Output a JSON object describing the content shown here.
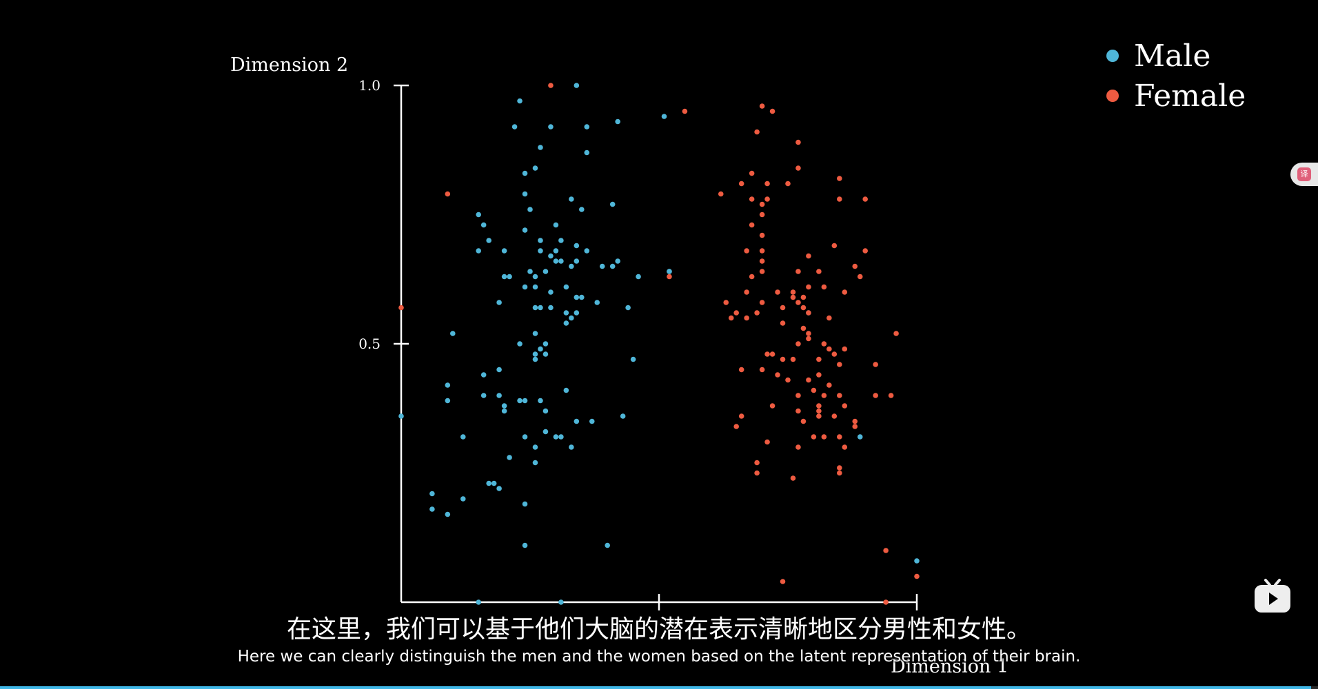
{
  "colors": {
    "male": "#4fb6d8",
    "female": "#ee5b41",
    "axis": "#ffffff",
    "background": "#000000"
  },
  "legend": {
    "items": [
      {
        "label": "Male",
        "color": "#4fb6d8"
      },
      {
        "label": "Female",
        "color": "#ee5b41"
      }
    ]
  },
  "subtitles": {
    "zh": "在这里，我们可以基于他们大脑的潜在表示清晰地区分男性和女性。",
    "en": "Here we can clearly distinguish the men and the women based on the latent representation of their brain."
  },
  "player": {
    "progress_fraction": 0.995
  },
  "icons": {
    "translate": "translate-icon",
    "logo": "bilibili-tv-icon"
  },
  "chart_data": {
    "type": "scatter",
    "xlabel": "Dimension 1",
    "ylabel": "Dimension 2",
    "xlim": [
      0,
      1.0
    ],
    "ylim": [
      0,
      1.0
    ],
    "yticks": [
      {
        "value": 0.5,
        "label": "0.5"
      },
      {
        "value": 1.0,
        "label": "1.0"
      }
    ],
    "xticks": [
      {
        "value": 0.5,
        "label": ""
      },
      {
        "value": 1.0,
        "label": ""
      }
    ],
    "grid": false,
    "legend_position": "top-right",
    "series": [
      {
        "name": "Male",
        "color": "#4fb6d8",
        "points": [
          [
            0.34,
            1.0
          ],
          [
            0.23,
            0.97
          ],
          [
            0.22,
            0.92
          ],
          [
            0.29,
            0.92
          ],
          [
            0.36,
            0.92
          ],
          [
            0.42,
            0.93
          ],
          [
            0.51,
            0.94
          ],
          [
            0.27,
            0.88
          ],
          [
            0.36,
            0.87
          ],
          [
            0.24,
            0.83
          ],
          [
            0.26,
            0.84
          ],
          [
            0.24,
            0.79
          ],
          [
            0.33,
            0.78
          ],
          [
            0.25,
            0.76
          ],
          [
            0.15,
            0.75
          ],
          [
            0.16,
            0.73
          ],
          [
            0.3,
            0.73
          ],
          [
            0.41,
            0.77
          ],
          [
            0.35,
            0.76
          ],
          [
            0.24,
            0.72
          ],
          [
            0.17,
            0.7
          ],
          [
            0.27,
            0.7
          ],
          [
            0.31,
            0.7
          ],
          [
            0.3,
            0.68
          ],
          [
            0.34,
            0.69
          ],
          [
            0.36,
            0.68
          ],
          [
            0.15,
            0.68
          ],
          [
            0.2,
            0.68
          ],
          [
            0.27,
            0.68
          ],
          [
            0.29,
            0.67
          ],
          [
            0.3,
            0.66
          ],
          [
            0.31,
            0.66
          ],
          [
            0.34,
            0.66
          ],
          [
            0.33,
            0.65
          ],
          [
            0.39,
            0.65
          ],
          [
            0.41,
            0.65
          ],
          [
            0.42,
            0.66
          ],
          [
            0.25,
            0.64
          ],
          [
            0.28,
            0.64
          ],
          [
            0.26,
            0.63
          ],
          [
            0.2,
            0.63
          ],
          [
            0.21,
            0.63
          ],
          [
            0.46,
            0.63
          ],
          [
            0.52,
            0.64
          ],
          [
            0.24,
            0.61
          ],
          [
            0.26,
            0.61
          ],
          [
            0.32,
            0.61
          ],
          [
            0.29,
            0.6
          ],
          [
            0.34,
            0.59
          ],
          [
            0.35,
            0.59
          ],
          [
            0.38,
            0.58
          ],
          [
            0.19,
            0.58
          ],
          [
            0.29,
            0.57
          ],
          [
            0.26,
            0.57
          ],
          [
            0.27,
            0.57
          ],
          [
            0.32,
            0.56
          ],
          [
            0.34,
            0.56
          ],
          [
            0.44,
            0.57
          ],
          [
            0.33,
            0.55
          ],
          [
            0.32,
            0.54
          ],
          [
            0.1,
            0.52
          ],
          [
            0.26,
            0.52
          ],
          [
            0.23,
            0.5
          ],
          [
            0.28,
            0.5
          ],
          [
            0.27,
            0.49
          ],
          [
            0.26,
            0.48
          ],
          [
            0.28,
            0.48
          ],
          [
            0.26,
            0.47
          ],
          [
            0.45,
            0.47
          ],
          [
            0.19,
            0.45
          ],
          [
            0.16,
            0.44
          ],
          [
            0.09,
            0.42
          ],
          [
            0.16,
            0.4
          ],
          [
            0.19,
            0.4
          ],
          [
            0.23,
            0.39
          ],
          [
            0.24,
            0.39
          ],
          [
            0.32,
            0.41
          ],
          [
            0.09,
            0.39
          ],
          [
            0.27,
            0.39
          ],
          [
            0.2,
            0.38
          ],
          [
            0.2,
            0.37
          ],
          [
            0.28,
            0.37
          ],
          [
            0.43,
            0.36
          ],
          [
            0.34,
            0.35
          ],
          [
            0.37,
            0.35
          ],
          [
            0.0,
            0.36
          ],
          [
            0.28,
            0.33
          ],
          [
            0.3,
            0.32
          ],
          [
            0.31,
            0.32
          ],
          [
            0.24,
            0.32
          ],
          [
            0.12,
            0.32
          ],
          [
            0.26,
            0.3
          ],
          [
            0.33,
            0.3
          ],
          [
            0.21,
            0.28
          ],
          [
            0.26,
            0.27
          ],
          [
            0.17,
            0.23
          ],
          [
            0.18,
            0.23
          ],
          [
            0.19,
            0.22
          ],
          [
            0.06,
            0.21
          ],
          [
            0.12,
            0.2
          ],
          [
            0.06,
            0.18
          ],
          [
            0.09,
            0.17
          ],
          [
            0.24,
            0.19
          ],
          [
            0.24,
            0.11
          ],
          [
            0.4,
            0.11
          ],
          [
            0.15,
            0.0
          ],
          [
            0.31,
            0.0
          ],
          [
            0.52,
            0.64
          ],
          [
            0.79,
            0.56
          ],
          [
            0.89,
            0.32
          ],
          [
            1.0,
            0.08
          ]
        ]
      },
      {
        "name": "Female",
        "color": "#ee5b41",
        "points": [
          [
            0.29,
            1.0
          ],
          [
            0.55,
            0.95
          ],
          [
            0.7,
            0.96
          ],
          [
            0.72,
            0.95
          ],
          [
            0.69,
            0.91
          ],
          [
            0.77,
            0.89
          ],
          [
            0.77,
            0.84
          ],
          [
            0.68,
            0.83
          ],
          [
            0.66,
            0.81
          ],
          [
            0.71,
            0.81
          ],
          [
            0.75,
            0.81
          ],
          [
            0.85,
            0.82
          ],
          [
            0.09,
            0.79
          ],
          [
            0.62,
            0.79
          ],
          [
            0.68,
            0.78
          ],
          [
            0.7,
            0.77
          ],
          [
            0.71,
            0.78
          ],
          [
            0.85,
            0.78
          ],
          [
            0.9,
            0.78
          ],
          [
            0.7,
            0.75
          ],
          [
            0.68,
            0.73
          ],
          [
            0.7,
            0.71
          ],
          [
            0.84,
            0.69
          ],
          [
            0.7,
            0.68
          ],
          [
            0.67,
            0.68
          ],
          [
            0.9,
            0.68
          ],
          [
            0.79,
            0.67
          ],
          [
            0.7,
            0.66
          ],
          [
            0.88,
            0.65
          ],
          [
            0.68,
            0.63
          ],
          [
            0.7,
            0.64
          ],
          [
            0.77,
            0.64
          ],
          [
            0.81,
            0.64
          ],
          [
            0.89,
            0.63
          ],
          [
            0.52,
            0.63
          ],
          [
            0.79,
            0.61
          ],
          [
            0.82,
            0.61
          ],
          [
            0.67,
            0.6
          ],
          [
            0.73,
            0.6
          ],
          [
            0.76,
            0.6
          ],
          [
            0.76,
            0.59
          ],
          [
            0.78,
            0.59
          ],
          [
            0.63,
            0.58
          ],
          [
            0.86,
            0.6
          ],
          [
            0.77,
            0.58
          ],
          [
            0.7,
            0.58
          ],
          [
            0.74,
            0.57
          ],
          [
            0.78,
            0.57
          ],
          [
            0.79,
            0.56
          ],
          [
            0.0,
            0.57
          ],
          [
            0.69,
            0.56
          ],
          [
            0.65,
            0.56
          ],
          [
            0.67,
            0.55
          ],
          [
            0.64,
            0.55
          ],
          [
            0.83,
            0.55
          ],
          [
            0.74,
            0.54
          ],
          [
            0.78,
            0.53
          ],
          [
            0.79,
            0.52
          ],
          [
            0.96,
            0.52
          ],
          [
            0.79,
            0.51
          ],
          [
            0.77,
            0.5
          ],
          [
            0.82,
            0.5
          ],
          [
            0.83,
            0.49
          ],
          [
            0.86,
            0.49
          ],
          [
            0.71,
            0.48
          ],
          [
            0.72,
            0.48
          ],
          [
            0.74,
            0.47
          ],
          [
            0.76,
            0.47
          ],
          [
            0.81,
            0.47
          ],
          [
            0.84,
            0.48
          ],
          [
            0.85,
            0.46
          ],
          [
            0.92,
            0.46
          ],
          [
            0.66,
            0.45
          ],
          [
            0.7,
            0.45
          ],
          [
            0.73,
            0.44
          ],
          [
            0.81,
            0.44
          ],
          [
            0.79,
            0.43
          ],
          [
            0.75,
            0.43
          ],
          [
            0.83,
            0.42
          ],
          [
            0.8,
            0.41
          ],
          [
            0.77,
            0.4
          ],
          [
            0.82,
            0.4
          ],
          [
            0.85,
            0.4
          ],
          [
            0.95,
            0.4
          ],
          [
            0.92,
            0.4
          ],
          [
            0.81,
            0.38
          ],
          [
            0.86,
            0.38
          ],
          [
            0.72,
            0.38
          ],
          [
            0.81,
            0.37
          ],
          [
            0.81,
            0.36
          ],
          [
            0.77,
            0.37
          ],
          [
            0.84,
            0.36
          ],
          [
            0.66,
            0.36
          ],
          [
            0.78,
            0.35
          ],
          [
            0.88,
            0.35
          ],
          [
            0.88,
            0.34
          ],
          [
            0.65,
            0.34
          ],
          [
            0.82,
            0.32
          ],
          [
            0.8,
            0.32
          ],
          [
            0.85,
            0.32
          ],
          [
            0.77,
            0.3
          ],
          [
            0.71,
            0.31
          ],
          [
            0.86,
            0.3
          ],
          [
            0.69,
            0.27
          ],
          [
            0.85,
            0.26
          ],
          [
            0.85,
            0.25
          ],
          [
            0.69,
            0.25
          ],
          [
            0.76,
            0.24
          ],
          [
            0.94,
            0.1
          ],
          [
            0.74,
            0.04
          ],
          [
            0.94,
            0.0
          ],
          [
            1.0,
            0.05
          ]
        ]
      }
    ]
  }
}
